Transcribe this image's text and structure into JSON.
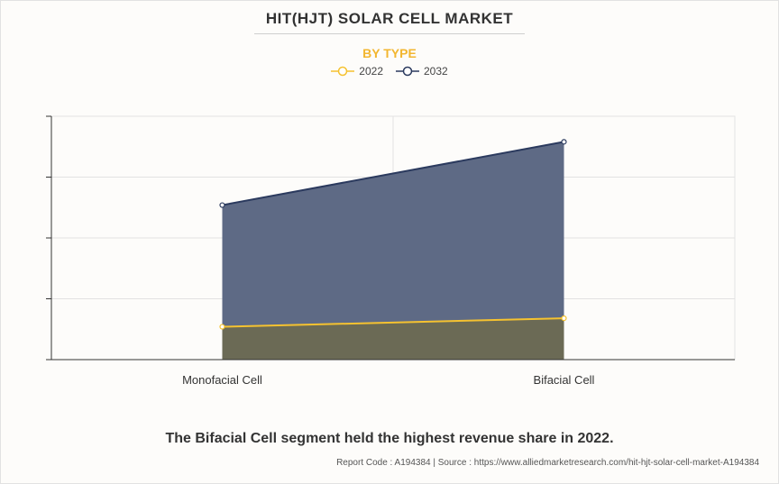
{
  "header": {
    "title": "HIT(HJT) SOLAR CELL MARKET",
    "subtitle": "BY TYPE"
  },
  "legend": [
    {
      "label": "2022",
      "color": "#f5c230"
    },
    {
      "label": "2032",
      "color": "#2b3a5e"
    }
  ],
  "chart_data": {
    "type": "area",
    "categories": [
      "Monofacial Cell",
      "Bifacial Cell"
    ],
    "series": [
      {
        "name": "2022",
        "values": [
          0.27,
          0.34
        ],
        "color": "#f5c230",
        "fill": "#6b6a55"
      },
      {
        "name": "2032",
        "values": [
          1.27,
          1.79
        ],
        "color": "#2b3a5e",
        "fill": "#5e6a85"
      }
    ],
    "ylim": [
      0,
      2
    ],
    "y_ticks": [
      0,
      0.5,
      1,
      1.5,
      2
    ],
    "grid": true,
    "legend_position": "top-center",
    "xlabel": "",
    "ylabel": ""
  },
  "footer": {
    "caption": "The Bifacial Cell segment held the highest revenue share in 2022.",
    "source": "Report Code : A194384  |  Source : https://www.alliedmarketresearch.com/hit-hjt-solar-cell-market-A194384"
  }
}
